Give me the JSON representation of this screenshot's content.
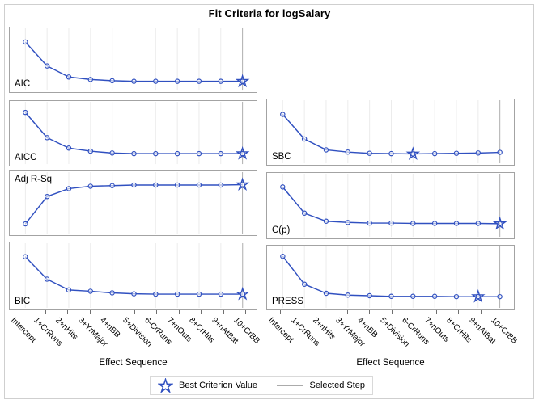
{
  "title": "Fit Criteria for logSalary",
  "x_axis": {
    "label": "Effect Sequence"
  },
  "legend": {
    "best_label": "Best Criterion Value",
    "selected_label": "Selected Step"
  },
  "colors": {
    "series": "#3050c0",
    "grid": "#ebebeb",
    "panel_border": "#a3a3a3",
    "selected_line": "#b0b0b0",
    "frame": "#cfcfcf",
    "tick": "#6f6f6f",
    "text": "#000000"
  },
  "chart_data": {
    "type": "line",
    "title": "Fit Criteria for logSalary",
    "xlabel": "Effect Sequence",
    "categories": [
      "Intercept",
      "1+CrRuns",
      "2+nHits",
      "3+YrMajor",
      "4+nBB",
      "5+Division",
      "6-CrRuns",
      "7+nOuts",
      "8+CrHits",
      "9+nAtBat",
      "10+CrBB"
    ],
    "y_scale": "unlabeled relative axis (0 = panel top, 1 = panel bottom)",
    "selected_step": "10+CrBB",
    "legend_entries": [
      "Best Criterion Value",
      "Selected Step"
    ],
    "panels": [
      {
        "name": "AIC",
        "column": "left",
        "label_position": "bottom-left",
        "best_step": "10+CrBB",
        "star_index": 10,
        "selected_index": 10,
        "y_frac_from_top": [
          0.21,
          0.6,
          0.78,
          0.82,
          0.84,
          0.85,
          0.85,
          0.85,
          0.85,
          0.85,
          0.85
        ]
      },
      {
        "name": "AICC",
        "column": "left",
        "label_position": "bottom-left",
        "best_step": "10+CrBB",
        "star_index": 10,
        "selected_index": 10,
        "y_frac_from_top": [
          0.16,
          0.57,
          0.74,
          0.79,
          0.82,
          0.83,
          0.83,
          0.83,
          0.83,
          0.83,
          0.83
        ]
      },
      {
        "name": "Adj R-Sq",
        "column": "left",
        "label_position": "top-left",
        "best_step": "10+CrBB",
        "star_index": 10,
        "selected_index": 10,
        "y_frac_from_top": [
          0.84,
          0.39,
          0.26,
          0.22,
          0.21,
          0.2,
          0.2,
          0.2,
          0.2,
          0.2,
          0.195
        ]
      },
      {
        "name": "BIC",
        "column": "left",
        "label_position": "bottom-left",
        "best_step": "10+CrBB",
        "star_index": 10,
        "selected_index": 10,
        "y_frac_from_top": [
          0.2,
          0.55,
          0.72,
          0.74,
          0.765,
          0.78,
          0.785,
          0.785,
          0.785,
          0.785,
          0.785
        ]
      },
      {
        "name": "SBC",
        "column": "right",
        "label_position": "bottom-left",
        "best_step": "6-CrRuns",
        "star_index": 6,
        "selected_index": 10,
        "y_frac_from_top": [
          0.215,
          0.61,
          0.785,
          0.82,
          0.84,
          0.845,
          0.85,
          0.845,
          0.84,
          0.835,
          0.825
        ]
      },
      {
        "name": "C(p)",
        "column": "right",
        "label_position": "bottom-left",
        "best_step": "10+CrBB",
        "star_index": 10,
        "selected_index": 10,
        "y_frac_from_top": [
          0.2,
          0.62,
          0.75,
          0.77,
          0.78,
          0.78,
          0.785,
          0.785,
          0.785,
          0.785,
          0.79
        ]
      },
      {
        "name": "PRESS",
        "column": "right",
        "label_position": "bottom-left",
        "best_step": "9+nAtBat",
        "star_index": 9,
        "selected_index": 10,
        "y_frac_from_top": [
          0.15,
          0.61,
          0.76,
          0.79,
          0.8,
          0.81,
          0.81,
          0.81,
          0.815,
          0.815,
          0.815
        ]
      }
    ]
  }
}
